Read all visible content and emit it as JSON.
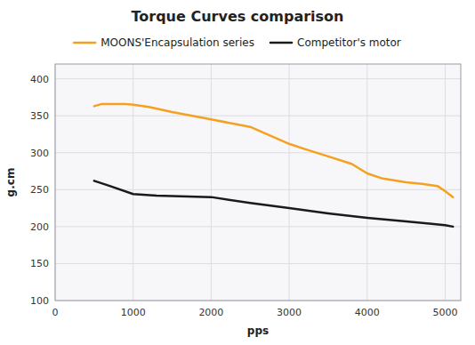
{
  "chart_data": {
    "type": "line",
    "title": "Torque Curves comparison",
    "xlabel": "pps",
    "ylabel": "g.cm",
    "xlim": [
      0,
      5200
    ],
    "ylim": [
      100,
      420
    ],
    "xticks": [
      0,
      1000,
      2000,
      3000,
      4000,
      5000
    ],
    "yticks": [
      100,
      150,
      200,
      250,
      300,
      350,
      400
    ],
    "grid": true,
    "legend": "top",
    "series": [
      {
        "name": "MOONS'Encapsulation series",
        "color": "#f5a020",
        "x": [
          500,
          600,
          700,
          800,
          900,
          1000,
          1200,
          1500,
          2000,
          2500,
          3000,
          3200,
          3500,
          3800,
          4000,
          4200,
          4500,
          4700,
          4900,
          5000,
          5100
        ],
        "values": [
          363,
          366,
          366,
          366,
          366,
          365,
          362,
          355,
          345,
          335,
          312,
          305,
          295,
          285,
          272,
          265,
          260,
          258,
          255,
          248,
          240
        ]
      },
      {
        "name": "Competitor's motor",
        "color": "#1a1a1a",
        "x": [
          500,
          700,
          1000,
          1300,
          1600,
          2000,
          2500,
          3000,
          3500,
          4000,
          4500,
          4800,
          5000,
          5100
        ],
        "values": [
          262,
          255,
          244,
          242,
          241,
          240,
          232,
          225,
          218,
          212,
          207,
          204,
          202,
          200
        ]
      }
    ]
  }
}
